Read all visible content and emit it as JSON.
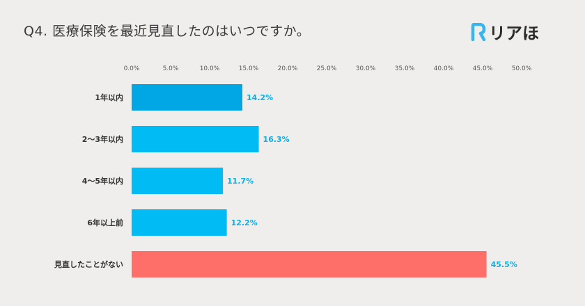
{
  "header": {
    "title": "Q4. 医療保険を最近見直したのはいつですか。",
    "logo_text": "リアほ",
    "logo_mark_letter": "R",
    "logo_color": "#3ab4ec"
  },
  "chart_data": {
    "type": "bar",
    "orientation": "horizontal",
    "title": "Q4. 医療保険を最近見直したのはいつですか。",
    "xlabel": "",
    "ylabel": "",
    "xlim": [
      0,
      50
    ],
    "ticks": [
      "0.0%",
      "5.0%",
      "10.0%",
      "15.0%",
      "20.0%",
      "25.0%",
      "30.0%",
      "35.0%",
      "40.0%",
      "45.0%",
      "50.0%"
    ],
    "tick_values": [
      0,
      5,
      10,
      15,
      20,
      25,
      30,
      35,
      40,
      45,
      50
    ],
    "axis_position": "top",
    "grid": false,
    "categories": [
      "1年以内",
      "2〜3年以内",
      "4〜5年以内",
      "6年以上前",
      "見直したことがない"
    ],
    "values": [
      14.2,
      16.3,
      11.7,
      12.2,
      45.5
    ],
    "value_labels": [
      "14.2%",
      "16.3%",
      "11.7%",
      "12.2%",
      "45.5%"
    ],
    "colors": [
      "#00a7e4",
      "#00bbf4",
      "#00bbf4",
      "#00bbf4",
      "#ff6f6a"
    ],
    "label_colors": [
      "#0ab0e6",
      "#0ab0e6",
      "#0ab0e6",
      "#0ab0e6",
      "#0ab0e6"
    ]
  }
}
